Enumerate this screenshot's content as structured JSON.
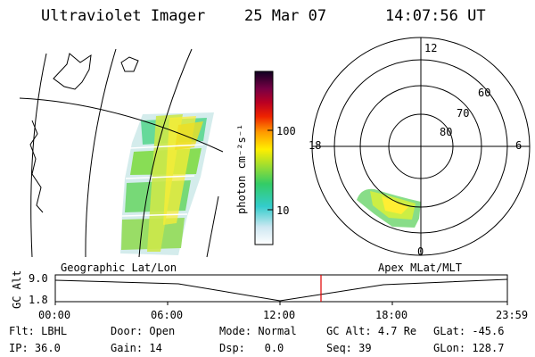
{
  "header": {
    "instrument": "Ultraviolet Imager",
    "date": "25 Mar 07",
    "time": "14:07:56 UT"
  },
  "colorbar": {
    "unit_label": "photon cm⁻²s⁻¹",
    "ticks": [
      "100",
      "10"
    ],
    "scale": "log"
  },
  "polar_plot": {
    "mlt_labels": {
      "top": "12",
      "left": "18",
      "right": "6",
      "bottom": "0"
    },
    "mlat_labels": [
      "60",
      "70",
      "80"
    ]
  },
  "panel_labels": {
    "left": "Geographic Lat/Lon",
    "right": "Apex MLat/MLT"
  },
  "altitude_strip": {
    "axis_title": "GC Alt",
    "y_ticks": [
      "9.0",
      "1.8"
    ],
    "x_ticks": [
      "00:00",
      "06:00",
      "12:00",
      "18:00",
      "23:59"
    ],
    "marker_color": "#e00000"
  },
  "status": {
    "row1": [
      {
        "label": "Flt:",
        "value": "LBHL"
      },
      {
        "label": "Door:",
        "value": "Open"
      },
      {
        "label": "Mode:",
        "value": "Normal"
      },
      {
        "label": "GC Alt:",
        "value": "4.7 Re"
      },
      {
        "label": "GLat:",
        "value": "-45.6"
      }
    ],
    "row2": [
      {
        "label": "IP:",
        "value": "36.0"
      },
      {
        "label": "Gain:",
        "value": "14"
      },
      {
        "label": "Dsp:",
        "value": "0.0"
      },
      {
        "label": "Seq:",
        "value": "39"
      },
      {
        "label": "GLon:",
        "value": "128.7"
      }
    ]
  }
}
